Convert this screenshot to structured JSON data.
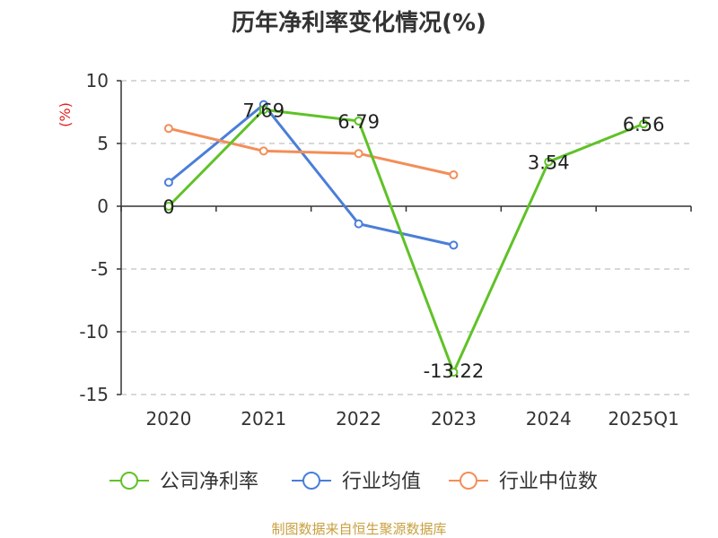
{
  "chart_data": {
    "type": "line",
    "title": "历年净利率变化情况(%)",
    "ylabel": "(%)",
    "xlabel": "",
    "categories": [
      "2020",
      "2021",
      "2022",
      "2023",
      "2024",
      "2025Q1"
    ],
    "ylim": [
      -15,
      10
    ],
    "yticks": [
      10,
      5,
      0,
      -5,
      -10,
      -15
    ],
    "grid": true,
    "legend_position": "bottom",
    "series": [
      {
        "name": "公司净利率",
        "color": "#5fc227",
        "values": [
          0,
          7.69,
          6.79,
          -13.22,
          3.54,
          6.56
        ],
        "labels": [
          "0",
          "7.69",
          "6.79",
          "-13.22",
          "3.54",
          "6.56"
        ]
      },
      {
        "name": "行业均值",
        "color": "#4a7ed9",
        "values": [
          1.9,
          8.1,
          -1.4,
          -3.1,
          null,
          null
        ]
      },
      {
        "name": "行业中位数",
        "color": "#f38e59",
        "values": [
          6.2,
          4.4,
          4.2,
          2.5,
          null,
          null
        ]
      }
    ]
  },
  "footer": {
    "source": "制图数据来自恒生聚源数据库"
  }
}
